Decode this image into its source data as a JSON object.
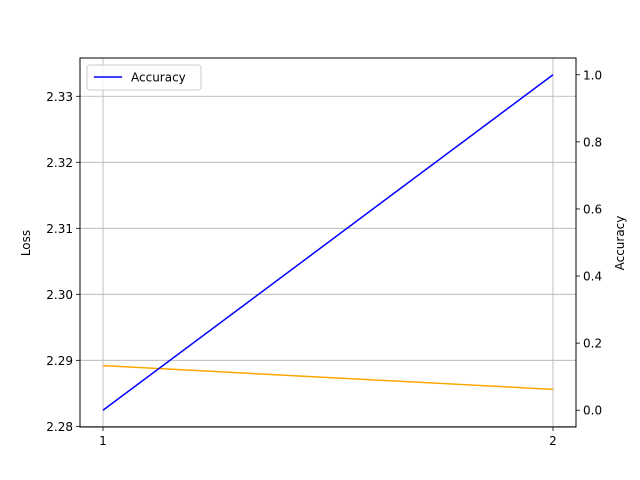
{
  "chart_data": {
    "type": "line",
    "x": [
      1,
      2
    ],
    "x_ticks": [
      "1",
      "2"
    ],
    "ylabel_left": "Loss",
    "ylabel_right": "Accuracy",
    "ylim_left": [
      2.2799,
      2.3358
    ],
    "ylim_right": [
      -0.05,
      1.05
    ],
    "yticks_left": [
      "2.28",
      "2.29",
      "2.30",
      "2.31",
      "2.32",
      "2.33"
    ],
    "yticks_right": [
      "0.0",
      "0.2",
      "0.4",
      "0.6",
      "0.8",
      "1.0"
    ],
    "grid": true,
    "legend": {
      "placement": "top-left",
      "entries": [
        "Accuracy"
      ]
    },
    "series": [
      {
        "axis": "left",
        "color": "#FFA500",
        "values": [
          2.2892,
          2.2856
        ]
      },
      {
        "name": "Accuracy",
        "axis": "right",
        "color": "#0000FF",
        "values": [
          0.0,
          1.0
        ]
      }
    ]
  }
}
